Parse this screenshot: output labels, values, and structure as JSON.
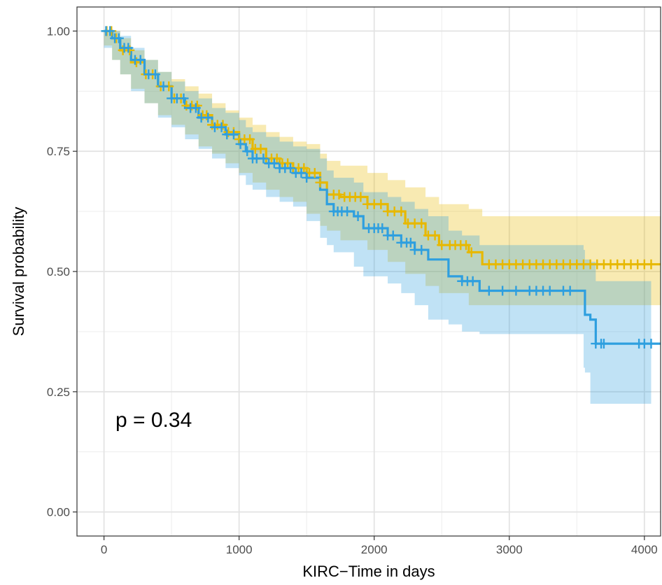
{
  "chart_data": {
    "type": "line",
    "subtype": "kaplan-meier",
    "title": "",
    "xlabel": "KIRC−Time in days",
    "ylabel": "Survival probability",
    "xlim": [
      -200,
      4120
    ],
    "ylim": [
      -0.05,
      1.05
    ],
    "x_ticks": [
      0,
      1000,
      2000,
      3000,
      4000
    ],
    "x_tick_labels": [
      "0",
      "1000",
      "2000",
      "3000",
      "4000"
    ],
    "y_ticks": [
      0,
      0.25,
      0.5,
      0.75,
      1.0
    ],
    "y_tick_labels": [
      "0.00",
      "0.25",
      "0.50",
      "0.75",
      "1.00"
    ],
    "grid": true,
    "legend": "none",
    "annotation": "p = 0.34",
    "colors": {
      "series_1": "#E7B800",
      "series_2": "#2E9FDF"
    },
    "series": [
      {
        "color": "#E7B800",
        "steps": [
          [
            0,
            1.0
          ],
          [
            60,
            0.985
          ],
          [
            120,
            0.96
          ],
          [
            200,
            0.935
          ],
          [
            300,
            0.91
          ],
          [
            400,
            0.885
          ],
          [
            500,
            0.86
          ],
          [
            600,
            0.845
          ],
          [
            700,
            0.825
          ],
          [
            800,
            0.805
          ],
          [
            900,
            0.79
          ],
          [
            1000,
            0.775
          ],
          [
            1100,
            0.755
          ],
          [
            1200,
            0.735
          ],
          [
            1300,
            0.725
          ],
          [
            1400,
            0.715
          ],
          [
            1500,
            0.705
          ],
          [
            1600,
            0.685
          ],
          [
            1650,
            0.66
          ],
          [
            1750,
            0.655
          ],
          [
            1950,
            0.64
          ],
          [
            2100,
            0.625
          ],
          [
            2230,
            0.6
          ],
          [
            2380,
            0.575
          ],
          [
            2480,
            0.555
          ],
          [
            2700,
            0.54
          ],
          [
            2800,
            0.515
          ],
          [
            4120,
            0.515
          ]
        ],
        "lower": [
          [
            0,
            1.0
          ],
          [
            60,
            0.97
          ],
          [
            120,
            0.94
          ],
          [
            200,
            0.91
          ],
          [
            300,
            0.88
          ],
          [
            400,
            0.85
          ],
          [
            500,
            0.825
          ],
          [
            600,
            0.805
          ],
          [
            700,
            0.785
          ],
          [
            800,
            0.76
          ],
          [
            900,
            0.745
          ],
          [
            1000,
            0.725
          ],
          [
            1100,
            0.705
          ],
          [
            1200,
            0.685
          ],
          [
            1300,
            0.67
          ],
          [
            1400,
            0.655
          ],
          [
            1500,
            0.645
          ],
          [
            1600,
            0.62
          ],
          [
            1650,
            0.595
          ],
          [
            1750,
            0.585
          ],
          [
            1950,
            0.565
          ],
          [
            2100,
            0.545
          ],
          [
            2230,
            0.52
          ],
          [
            2380,
            0.495
          ],
          [
            2480,
            0.47
          ],
          [
            2700,
            0.455
          ],
          [
            2800,
            0.43
          ],
          [
            4120,
            0.43
          ]
        ],
        "upper": [
          [
            0,
            1.0
          ],
          [
            60,
            1.0
          ],
          [
            120,
            0.985
          ],
          [
            200,
            0.96
          ],
          [
            300,
            0.94
          ],
          [
            400,
            0.915
          ],
          [
            500,
            0.9
          ],
          [
            600,
            0.885
          ],
          [
            700,
            0.87
          ],
          [
            800,
            0.85
          ],
          [
            900,
            0.835
          ],
          [
            1000,
            0.82
          ],
          [
            1100,
            0.805
          ],
          [
            1200,
            0.79
          ],
          [
            1300,
            0.78
          ],
          [
            1400,
            0.77
          ],
          [
            1500,
            0.765
          ],
          [
            1600,
            0.745
          ],
          [
            1650,
            0.73
          ],
          [
            1750,
            0.72
          ],
          [
            1950,
            0.705
          ],
          [
            2100,
            0.69
          ],
          [
            2230,
            0.675
          ],
          [
            2380,
            0.655
          ],
          [
            2480,
            0.64
          ],
          [
            2700,
            0.63
          ],
          [
            2800,
            0.615
          ],
          [
            4120,
            0.615
          ]
        ],
        "censor_times": [
          20,
          55,
          90,
          140,
          190,
          240,
          310,
          360,
          420,
          480,
          520,
          570,
          610,
          650,
          690,
          730,
          760,
          800,
          840,
          880,
          920,
          960,
          1000,
          1040,
          1080,
          1120,
          1160,
          1200,
          1240,
          1280,
          1320,
          1360,
          1400,
          1440,
          1480,
          1520,
          1560,
          1600,
          1700,
          1740,
          1780,
          1820,
          1860,
          1900,
          1950,
          2000,
          2050,
          2100,
          2150,
          2200,
          2250,
          2300,
          2350,
          2400,
          2450,
          2500,
          2560,
          2600,
          2640,
          2680,
          2720,
          2850,
          2900,
          2950,
          3000,
          3050,
          3100,
          3150,
          3200,
          3250,
          3300,
          3350,
          3400,
          3450,
          3500,
          3550,
          3600,
          3650,
          3700,
          3750,
          3800,
          3850,
          3900,
          3950,
          4000,
          4050
        ]
      },
      {
        "color": "#2E9FDF",
        "steps": [
          [
            0,
            1.0
          ],
          [
            60,
            0.985
          ],
          [
            120,
            0.965
          ],
          [
            200,
            0.94
          ],
          [
            300,
            0.91
          ],
          [
            400,
            0.885
          ],
          [
            500,
            0.86
          ],
          [
            600,
            0.84
          ],
          [
            700,
            0.82
          ],
          [
            800,
            0.8
          ],
          [
            900,
            0.785
          ],
          [
            1000,
            0.765
          ],
          [
            1050,
            0.75
          ],
          [
            1100,
            0.735
          ],
          [
            1200,
            0.725
          ],
          [
            1300,
            0.715
          ],
          [
            1400,
            0.705
          ],
          [
            1500,
            0.695
          ],
          [
            1600,
            0.67
          ],
          [
            1650,
            0.64
          ],
          [
            1700,
            0.625
          ],
          [
            1850,
            0.615
          ],
          [
            1920,
            0.59
          ],
          [
            2100,
            0.575
          ],
          [
            2200,
            0.56
          ],
          [
            2300,
            0.545
          ],
          [
            2400,
            0.525
          ],
          [
            2550,
            0.49
          ],
          [
            2650,
            0.48
          ],
          [
            2780,
            0.46
          ],
          [
            3550,
            0.46
          ],
          [
            3560,
            0.41
          ],
          [
            3600,
            0.4
          ],
          [
            3640,
            0.35
          ],
          [
            4120,
            0.35
          ]
        ],
        "lower": [
          [
            0,
            1.0
          ],
          [
            60,
            0.965
          ],
          [
            120,
            0.94
          ],
          [
            200,
            0.91
          ],
          [
            300,
            0.875
          ],
          [
            400,
            0.85
          ],
          [
            500,
            0.82
          ],
          [
            600,
            0.8
          ],
          [
            700,
            0.775
          ],
          [
            800,
            0.755
          ],
          [
            900,
            0.735
          ],
          [
            1000,
            0.715
          ],
          [
            1050,
            0.7
          ],
          [
            1100,
            0.68
          ],
          [
            1200,
            0.67
          ],
          [
            1300,
            0.655
          ],
          [
            1400,
            0.645
          ],
          [
            1500,
            0.635
          ],
          [
            1600,
            0.605
          ],
          [
            1650,
            0.57
          ],
          [
            1700,
            0.555
          ],
          [
            1850,
            0.54
          ],
          [
            1920,
            0.51
          ],
          [
            2100,
            0.49
          ],
          [
            2200,
            0.475
          ],
          [
            2300,
            0.455
          ],
          [
            2400,
            0.43
          ],
          [
            2550,
            0.4
          ],
          [
            2650,
            0.39
          ],
          [
            2780,
            0.375
          ],
          [
            3550,
            0.37
          ],
          [
            3560,
            0.3
          ],
          [
            3600,
            0.29
          ],
          [
            3640,
            0.225
          ],
          [
            4050,
            0.225
          ]
        ],
        "upper": [
          [
            0,
            1.0
          ],
          [
            60,
            1.0
          ],
          [
            120,
            0.99
          ],
          [
            200,
            0.965
          ],
          [
            300,
            0.94
          ],
          [
            400,
            0.915
          ],
          [
            500,
            0.895
          ],
          [
            600,
            0.875
          ],
          [
            700,
            0.86
          ],
          [
            800,
            0.84
          ],
          [
            900,
            0.83
          ],
          [
            1000,
            0.815
          ],
          [
            1050,
            0.8
          ],
          [
            1100,
            0.79
          ],
          [
            1200,
            0.78
          ],
          [
            1300,
            0.77
          ],
          [
            1400,
            0.76
          ],
          [
            1500,
            0.755
          ],
          [
            1600,
            0.735
          ],
          [
            1650,
            0.71
          ],
          [
            1700,
            0.695
          ],
          [
            1850,
            0.685
          ],
          [
            1920,
            0.665
          ],
          [
            2100,
            0.655
          ],
          [
            2200,
            0.645
          ],
          [
            2300,
            0.63
          ],
          [
            2400,
            0.615
          ],
          [
            2550,
            0.585
          ],
          [
            2650,
            0.575
          ],
          [
            2780,
            0.555
          ],
          [
            3550,
            0.545
          ],
          [
            3560,
            0.525
          ],
          [
            3600,
            0.52
          ],
          [
            3640,
            0.48
          ],
          [
            4050,
            0.48
          ]
        ],
        "censor_times": [
          15,
          45,
          80,
          110,
          150,
          180,
          230,
          270,
          330,
          380,
          440,
          500,
          540,
          590,
          640,
          680,
          720,
          770,
          820,
          870,
          910,
          960,
          1010,
          1060,
          1100,
          1130,
          1180,
          1220,
          1260,
          1300,
          1340,
          1380,
          1420,
          1460,
          1500,
          1700,
          1730,
          1760,
          1800,
          1880,
          1960,
          2000,
          2030,
          2060,
          2100,
          2140,
          2200,
          2240,
          2270,
          2300,
          2350,
          2650,
          2690,
          2730,
          2850,
          2950,
          3050,
          3150,
          3200,
          3250,
          3300,
          3400,
          3450,
          3640,
          3680,
          3700,
          3960,
          4000,
          4050
        ]
      }
    ]
  }
}
